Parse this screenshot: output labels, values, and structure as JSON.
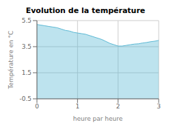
{
  "chart_data": {
    "type": "area",
    "title": "Evolution de la température",
    "x_label": "heure par heure",
    "y_label": "Température en °C",
    "x": [
      0,
      0.1,
      0.2,
      0.3,
      0.4,
      0.5,
      0.6,
      0.7,
      0.8,
      0.9,
      1.0,
      1.1,
      1.2,
      1.3,
      1.4,
      1.5,
      1.6,
      1.7,
      1.8,
      1.9,
      2.0,
      2.1,
      2.2,
      2.3,
      2.4,
      2.5,
      2.6,
      2.7,
      2.8,
      2.9,
      3.0
    ],
    "values": [
      5.2,
      5.15,
      5.1,
      5.05,
      5.0,
      4.95,
      4.85,
      4.75,
      4.7,
      4.6,
      4.55,
      4.5,
      4.45,
      4.35,
      4.25,
      4.15,
      4.05,
      3.9,
      3.75,
      3.65,
      3.55,
      3.55,
      3.6,
      3.65,
      3.7,
      3.72,
      3.78,
      3.82,
      3.88,
      3.92,
      3.98
    ],
    "xlim": [
      0,
      3
    ],
    "ylim": [
      -0.5,
      5.5
    ],
    "xticks": [
      0,
      1,
      2,
      3
    ],
    "yticks": [
      -0.5,
      1.5,
      3.5,
      5.5
    ],
    "color": "#5bb8d4",
    "grid": true
  }
}
